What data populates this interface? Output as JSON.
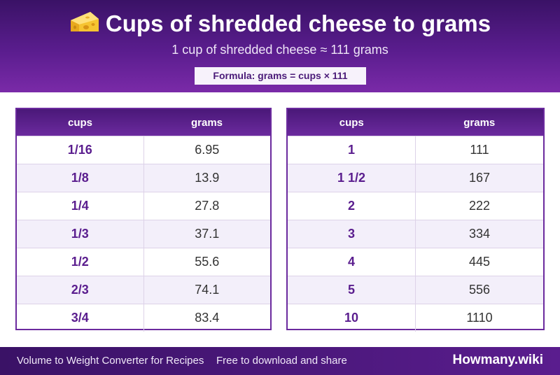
{
  "header": {
    "title": "Cups of shredded cheese to grams",
    "subtitle": "1 cup of shredded cheese ≈ 111 grams",
    "formula": "Formula: grams = cups × 111",
    "icon": "cheese-icon"
  },
  "table_left": {
    "col1": "cups",
    "col2": "grams",
    "rows": [
      {
        "cups": "1/16",
        "grams": "6.95"
      },
      {
        "cups": "1/8",
        "grams": "13.9"
      },
      {
        "cups": "1/4",
        "grams": "27.8"
      },
      {
        "cups": "1/3",
        "grams": "37.1"
      },
      {
        "cups": "1/2",
        "grams": "55.6"
      },
      {
        "cups": "2/3",
        "grams": "74.1"
      },
      {
        "cups": "3/4",
        "grams": "83.4"
      }
    ]
  },
  "table_right": {
    "col1": "cups",
    "col2": "grams",
    "rows": [
      {
        "cups": "1",
        "grams": "111"
      },
      {
        "cups": "1 1/2",
        "grams": "167"
      },
      {
        "cups": "2",
        "grams": "222"
      },
      {
        "cups": "3",
        "grams": "334"
      },
      {
        "cups": "4",
        "grams": "445"
      },
      {
        "cups": "5",
        "grams": "556"
      },
      {
        "cups": "10",
        "grams": "1110"
      }
    ]
  },
  "footer": {
    "left_text": "Volume to Weight Converter for Recipes",
    "middle_text": "Free to download and share",
    "brand": "Howmany.wiki"
  },
  "colors": {
    "primary": "#5a1d8e",
    "dark": "#3a1266",
    "row_alt": "#f3effa"
  }
}
